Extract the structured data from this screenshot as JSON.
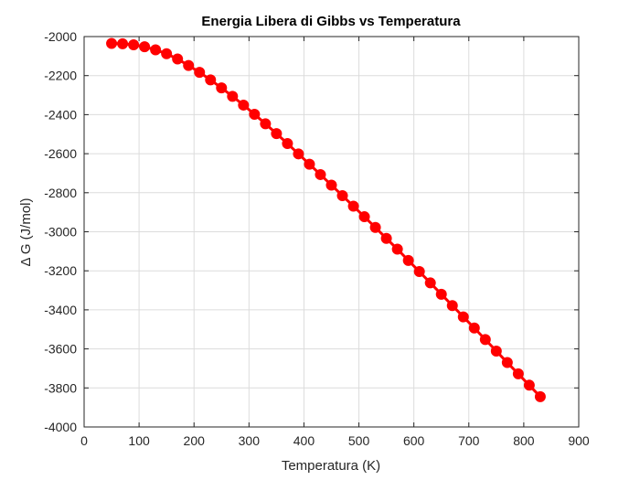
{
  "chart_data": {
    "type": "line",
    "title": "Energia Libera di Gibbs vs Temperatura",
    "xlabel": "Temperatura (K)",
    "ylabel": "Δ G (J/mol)",
    "xlim": [
      0,
      900
    ],
    "ylim": [
      -4000,
      -2000
    ],
    "xticks": [
      0,
      100,
      200,
      300,
      400,
      500,
      600,
      700,
      800,
      900
    ],
    "yticks": [
      -4000,
      -3800,
      -3600,
      -3400,
      -3200,
      -3000,
      -2800,
      -2600,
      -2400,
      -2200,
      -2000
    ],
    "grid": true,
    "series": [
      {
        "color": "#ff0000",
        "marker": "circle",
        "x": [
          50,
          70,
          90,
          110,
          130,
          150,
          170,
          190,
          210,
          230,
          250,
          270,
          290,
          310,
          330,
          350,
          370,
          390,
          410,
          430,
          450,
          470,
          490,
          510,
          530,
          550,
          570,
          590,
          610,
          630,
          650,
          670,
          690,
          710,
          730,
          750,
          770,
          790,
          810,
          830
        ],
        "y": [
          -2035,
          -2037,
          -2042,
          -2052,
          -2068,
          -2088,
          -2115,
          -2148,
          -2183,
          -2222,
          -2263,
          -2306,
          -2351,
          -2398,
          -2447,
          -2497,
          -2548,
          -2601,
          -2654,
          -2707,
          -2761,
          -2815,
          -2869,
          -2923,
          -2978,
          -3034,
          -3089,
          -3147,
          -3204,
          -3262,
          -3320,
          -3378,
          -3436,
          -3493,
          -3552,
          -3611,
          -3670,
          -3728,
          -3786,
          -3845
        ]
      }
    ]
  }
}
